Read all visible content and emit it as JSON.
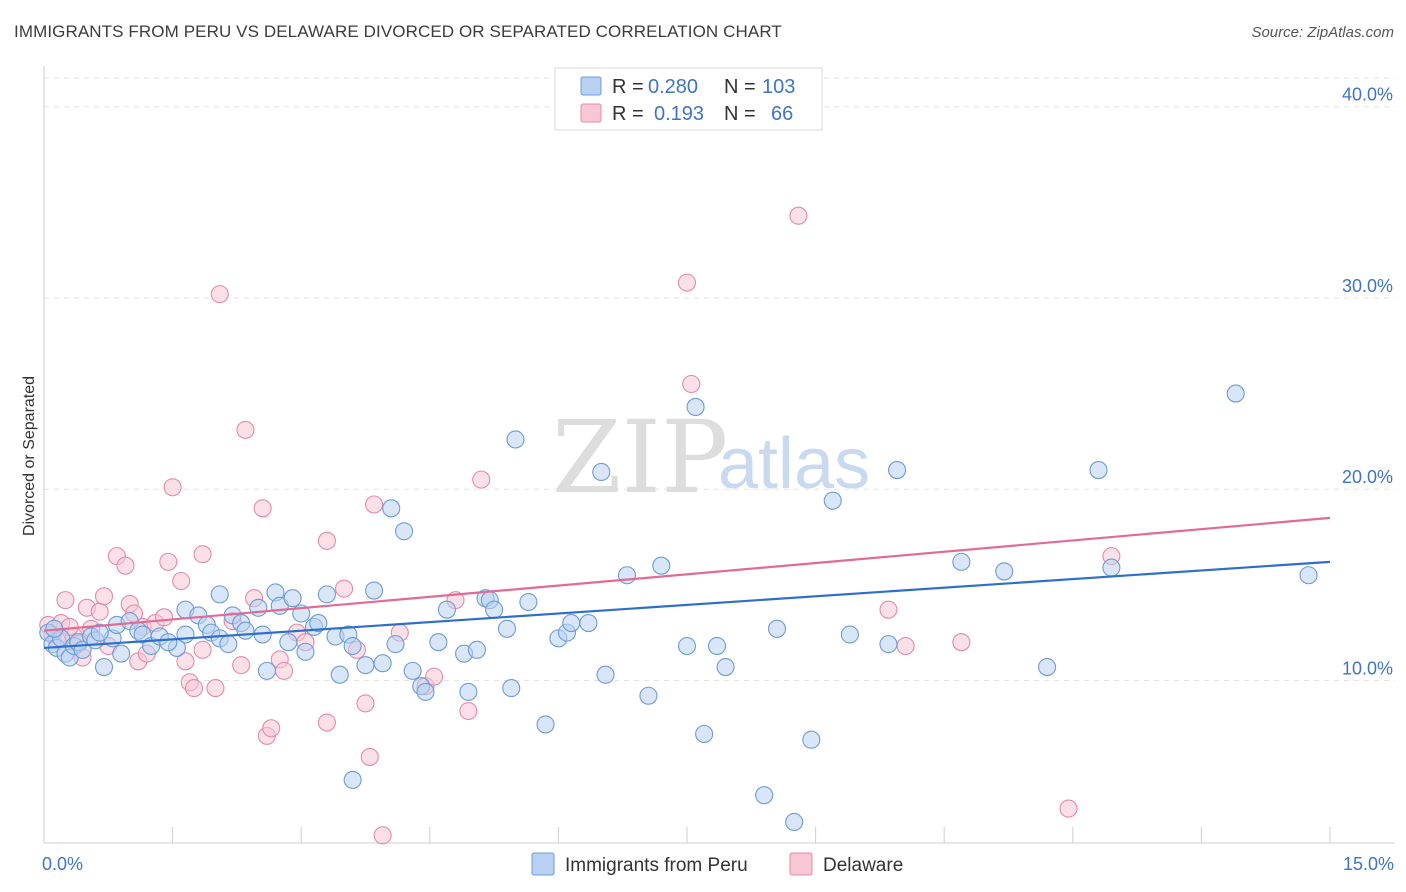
{
  "title": "IMMIGRANTS FROM PERU VS DELAWARE DIVORCED OR SEPARATED CORRELATION CHART",
  "source": "Source: ZipAtlas.com",
  "watermark": {
    "zip": "ZIP",
    "atlas": "atlas"
  },
  "colors": {
    "peru_fill": "#b8d1f3",
    "peru_stroke": "#6e9bd8",
    "peru_line": "#2f6fcb",
    "delaware_fill": "#f8c6d5",
    "delaware_stroke": "#e58ba7",
    "delaware_line": "#e26a93",
    "tick_text": "#3f74c4"
  },
  "legend": {
    "rows": [
      {
        "r_label": "R =",
        "r_value": "0.280",
        "n_label": "N =",
        "n_value": "103"
      },
      {
        "r_label": "R =",
        "r_value": "0.193",
        "n_label": "N =",
        "n_value": "66"
      }
    ]
  },
  "bottom_legend": [
    "Immigrants from Peru",
    "Delaware"
  ],
  "chart_data": {
    "type": "scatter",
    "xlabel": "",
    "ylabel": "Divorced or Separated",
    "xlim": [
      0,
      15
    ],
    "ylim": [
      1.5,
      41.5
    ],
    "x_tick_labels": [
      "0.0%",
      "15.0%"
    ],
    "y_ticks": [
      10,
      20,
      30,
      40
    ],
    "y_tick_labels": [
      "10.0%",
      "20.0%",
      "30.0%",
      "40.0%"
    ],
    "grid": true,
    "legend_position": "top-center",
    "series": [
      {
        "name": "Immigrants from Peru",
        "r": 0.28,
        "n": 103,
        "trend": {
          "x": [
            0,
            15
          ],
          "y": [
            11.7,
            16.2
          ]
        },
        "points": [
          [
            0.05,
            12.5
          ],
          [
            0.1,
            11.9
          ],
          [
            0.15,
            11.7
          ],
          [
            0.2,
            12.2
          ],
          [
            0.25,
            11.4
          ],
          [
            0.3,
            11.2
          ],
          [
            0.35,
            11.8
          ],
          [
            0.4,
            12.0
          ],
          [
            0.45,
            11.6
          ],
          [
            0.55,
            12.3
          ],
          [
            0.6,
            12.1
          ],
          [
            0.7,
            10.7
          ],
          [
            0.8,
            12.2
          ],
          [
            0.85,
            12.9
          ],
          [
            0.9,
            11.4
          ],
          [
            1.0,
            13.1
          ],
          [
            1.1,
            12.6
          ],
          [
            1.15,
            12.4
          ],
          [
            1.25,
            11.8
          ],
          [
            1.35,
            12.3
          ],
          [
            1.65,
            12.4
          ],
          [
            1.55,
            11.7
          ],
          [
            1.65,
            13.7
          ],
          [
            1.8,
            13.4
          ],
          [
            1.9,
            12.9
          ],
          [
            1.95,
            12.5
          ],
          [
            2.05,
            12.2
          ],
          [
            2.05,
            14.5
          ],
          [
            2.2,
            13.4
          ],
          [
            2.3,
            13.0
          ],
          [
            2.35,
            12.6
          ],
          [
            2.5,
            13.8
          ],
          [
            2.55,
            12.4
          ],
          [
            2.6,
            10.5
          ],
          [
            2.7,
            14.6
          ],
          [
            2.75,
            13.9
          ],
          [
            2.85,
            12.0
          ],
          [
            2.9,
            14.3
          ],
          [
            3.0,
            13.5
          ],
          [
            3.05,
            11.5
          ],
          [
            3.15,
            12.8
          ],
          [
            3.2,
            13.0
          ],
          [
            3.3,
            14.5
          ],
          [
            3.4,
            12.3
          ],
          [
            3.45,
            10.3
          ],
          [
            3.55,
            12.4
          ],
          [
            3.6,
            11.8
          ],
          [
            3.6,
            4.8
          ],
          [
            3.75,
            10.8
          ],
          [
            3.85,
            14.7
          ],
          [
            3.95,
            10.9
          ],
          [
            4.05,
            19.0
          ],
          [
            4.2,
            17.8
          ],
          [
            4.1,
            11.9
          ],
          [
            4.3,
            10.5
          ],
          [
            4.4,
            9.7
          ],
          [
            4.45,
            9.4
          ],
          [
            4.6,
            12.0
          ],
          [
            4.7,
            13.7
          ],
          [
            4.9,
            11.4
          ],
          [
            4.95,
            9.4
          ],
          [
            5.05,
            11.6
          ],
          [
            5.15,
            14.3
          ],
          [
            5.2,
            14.2
          ],
          [
            5.25,
            13.7
          ],
          [
            5.4,
            12.7
          ],
          [
            5.45,
            9.6
          ],
          [
            5.5,
            22.6
          ],
          [
            5.65,
            14.1
          ],
          [
            5.85,
            7.7
          ],
          [
            6.0,
            12.2
          ],
          [
            6.1,
            12.5
          ],
          [
            6.15,
            13.0
          ],
          [
            6.35,
            13.0
          ],
          [
            6.5,
            20.9
          ],
          [
            6.55,
            10.3
          ],
          [
            6.8,
            15.5
          ],
          [
            7.05,
            9.2
          ],
          [
            7.2,
            16.0
          ],
          [
            7.5,
            11.8
          ],
          [
            7.6,
            24.3
          ],
          [
            7.7,
            7.2
          ],
          [
            7.85,
            11.8
          ],
          [
            7.95,
            10.7
          ],
          [
            8.4,
            4.0
          ],
          [
            8.55,
            12.7
          ],
          [
            8.75,
            2.6
          ],
          [
            8.95,
            6.9
          ],
          [
            9.2,
            19.4
          ],
          [
            9.4,
            12.4
          ],
          [
            9.85,
            11.9
          ],
          [
            9.95,
            21.0
          ],
          [
            10.7,
            16.2
          ],
          [
            11.2,
            15.7
          ],
          [
            11.7,
            10.7
          ],
          [
            12.3,
            21.0
          ],
          [
            12.45,
            15.9
          ],
          [
            13.9,
            25.0
          ],
          [
            14.75,
            15.5
          ],
          [
            0.12,
            12.7
          ],
          [
            0.65,
            12.5
          ],
          [
            1.45,
            12.0
          ],
          [
            2.15,
            11.9
          ]
        ]
      },
      {
        "name": "Delaware",
        "r": 0.193,
        "n": 66,
        "trend": {
          "x": [
            0,
            15
          ],
          "y": [
            12.6,
            18.5
          ]
        },
        "points": [
          [
            0.05,
            12.9
          ],
          [
            0.1,
            12.4
          ],
          [
            0.15,
            12.1
          ],
          [
            0.2,
            13.0
          ],
          [
            0.25,
            14.2
          ],
          [
            0.35,
            12.3
          ],
          [
            0.4,
            11.9
          ],
          [
            0.45,
            11.2
          ],
          [
            0.5,
            13.8
          ],
          [
            0.55,
            12.7
          ],
          [
            0.65,
            13.6
          ],
          [
            0.7,
            14.4
          ],
          [
            0.75,
            11.8
          ],
          [
            0.85,
            16.5
          ],
          [
            0.95,
            16.0
          ],
          [
            1.0,
            14.0
          ],
          [
            1.05,
            13.5
          ],
          [
            1.1,
            11.0
          ],
          [
            1.15,
            12.8
          ],
          [
            1.2,
            11.4
          ],
          [
            1.3,
            13.0
          ],
          [
            1.4,
            13.3
          ],
          [
            1.45,
            16.2
          ],
          [
            1.5,
            20.1
          ],
          [
            1.6,
            15.2
          ],
          [
            1.65,
            11.0
          ],
          [
            1.7,
            9.9
          ],
          [
            1.75,
            9.6
          ],
          [
            1.85,
            16.6
          ],
          [
            1.85,
            11.6
          ],
          [
            2.0,
            9.6
          ],
          [
            2.05,
            30.2
          ],
          [
            2.2,
            13.1
          ],
          [
            2.3,
            10.8
          ],
          [
            2.35,
            23.1
          ],
          [
            2.45,
            14.3
          ],
          [
            2.55,
            19.0
          ],
          [
            2.6,
            7.1
          ],
          [
            2.65,
            7.5
          ],
          [
            2.75,
            11.1
          ],
          [
            2.8,
            10.5
          ],
          [
            2.95,
            12.5
          ],
          [
            3.05,
            12.0
          ],
          [
            3.3,
            17.3
          ],
          [
            3.3,
            7.8
          ],
          [
            3.5,
            14.8
          ],
          [
            3.65,
            11.6
          ],
          [
            3.75,
            8.8
          ],
          [
            3.8,
            6.0
          ],
          [
            3.85,
            19.2
          ],
          [
            3.95,
            1.9
          ],
          [
            4.15,
            12.5
          ],
          [
            4.45,
            9.7
          ],
          [
            4.55,
            10.2
          ],
          [
            4.8,
            14.2
          ],
          [
            4.95,
            8.4
          ],
          [
            5.1,
            20.5
          ],
          [
            7.5,
            30.8
          ],
          [
            7.55,
            25.5
          ],
          [
            8.8,
            34.3
          ],
          [
            9.85,
            13.7
          ],
          [
            10.05,
            11.8
          ],
          [
            10.7,
            12.0
          ],
          [
            11.95,
            3.3
          ],
          [
            12.45,
            16.5
          ],
          [
            0.3,
            12.8
          ]
        ]
      }
    ]
  }
}
